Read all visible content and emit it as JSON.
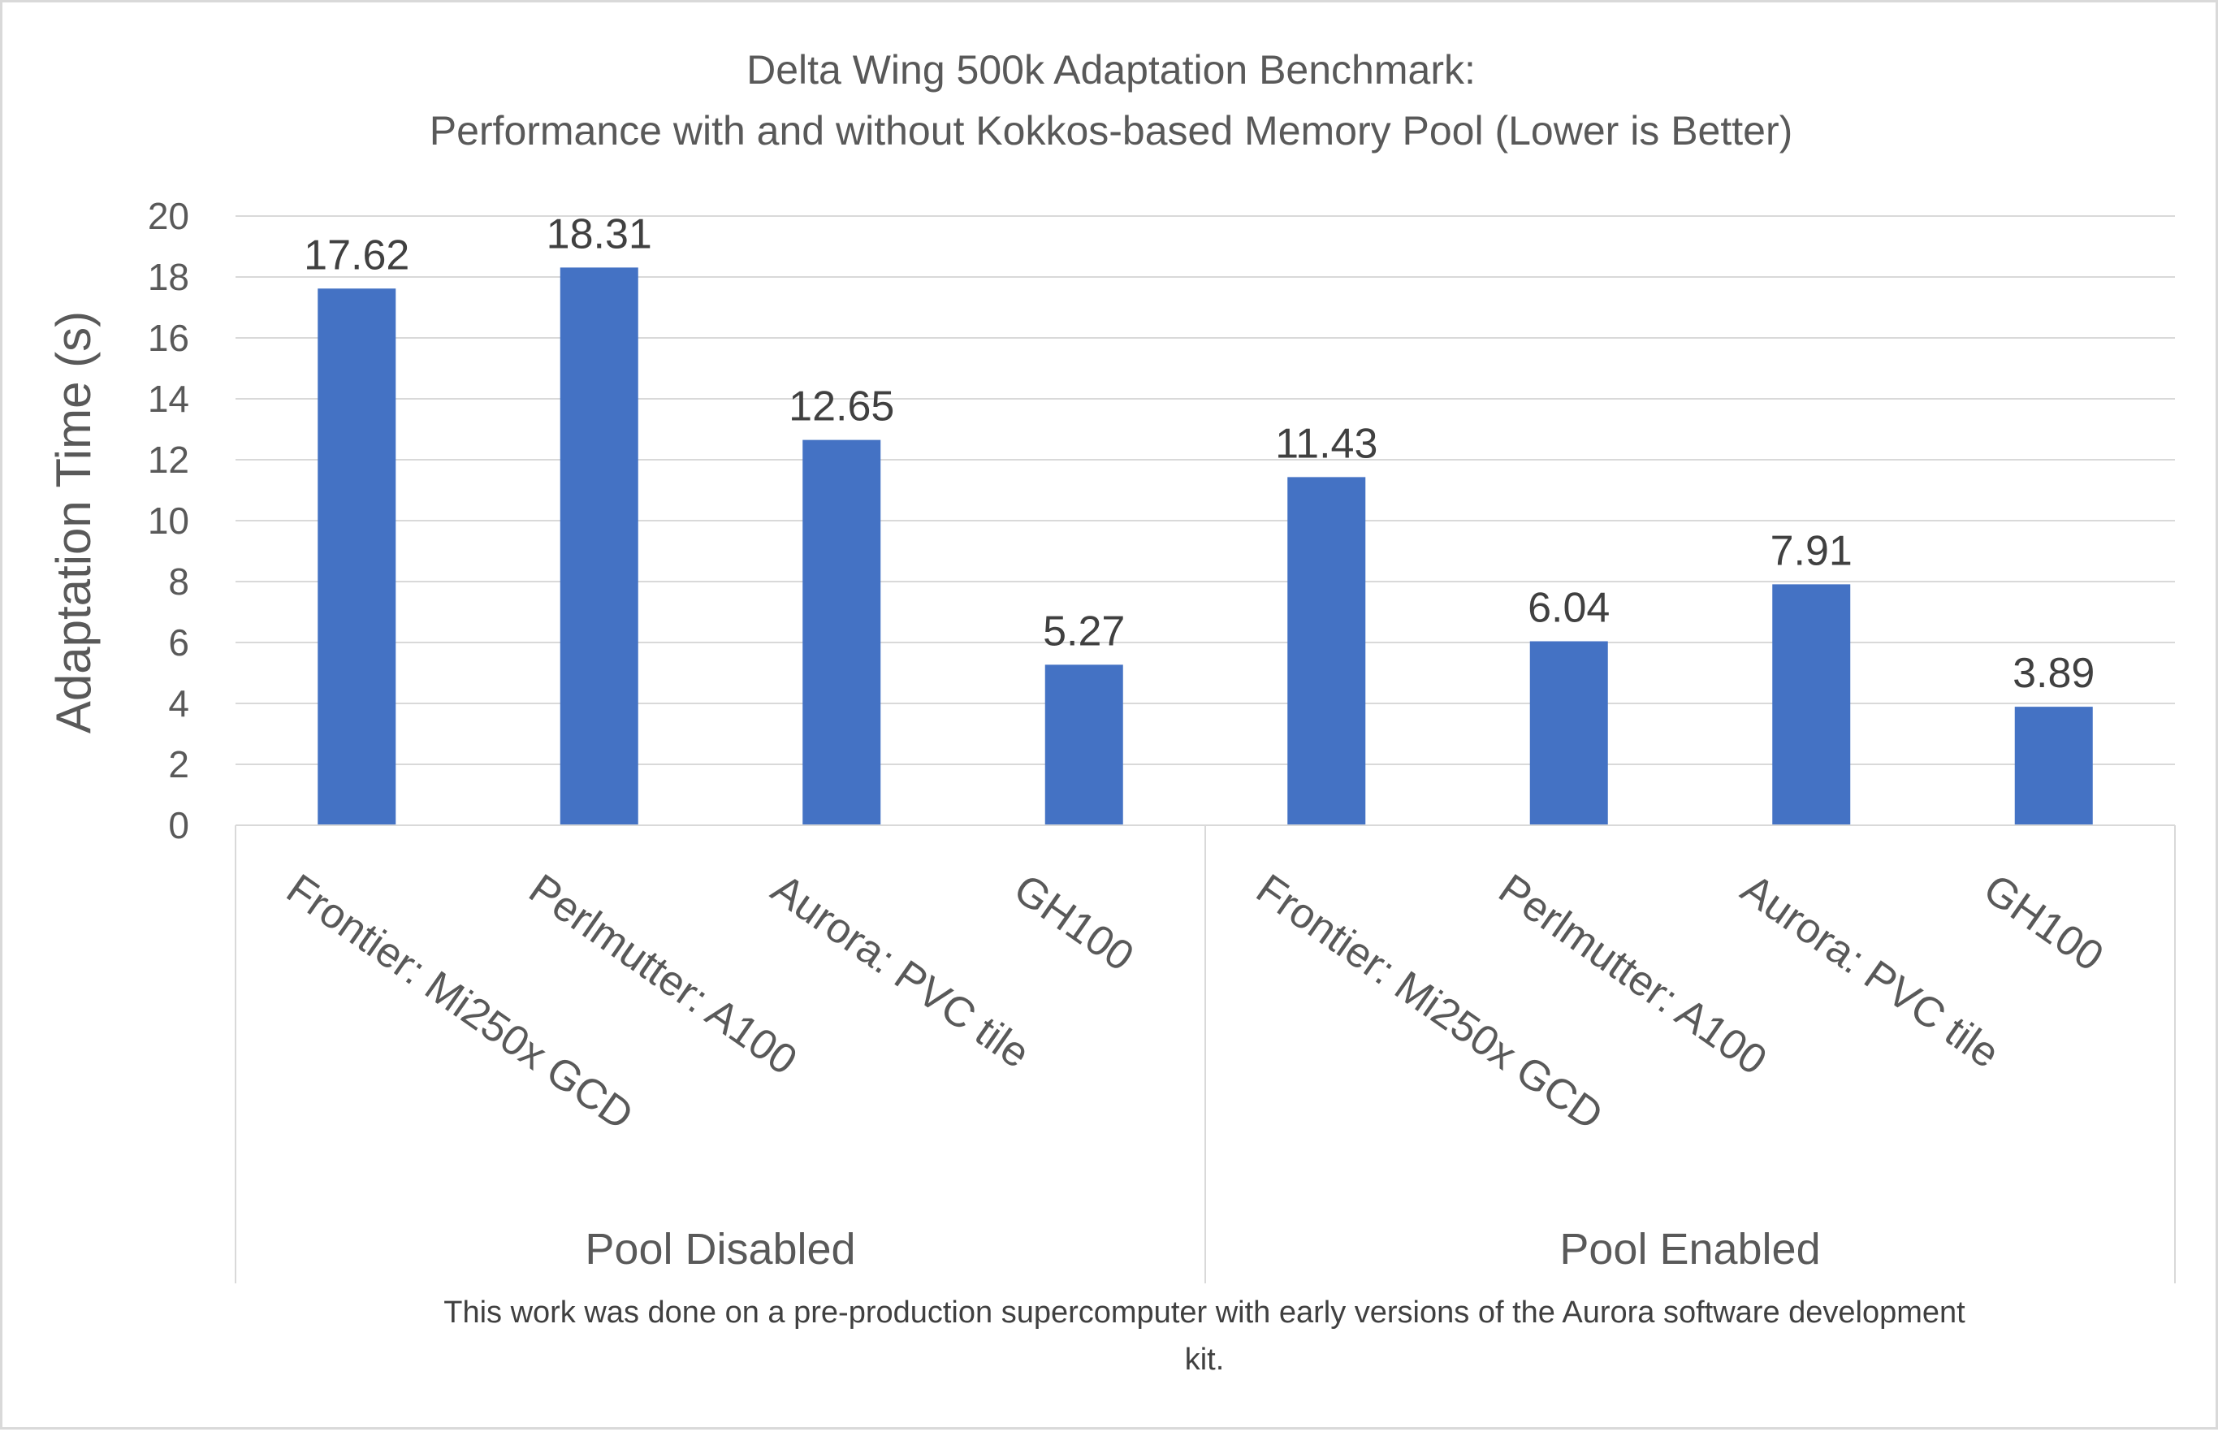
{
  "chart_data": {
    "type": "bar",
    "title": [
      "Delta Wing 500k Adaptation Benchmark:",
      "Performance with and without Kokkos-based Memory Pool (Lower is Better)"
    ],
    "ylabel": "Adaptation Time (s)",
    "xlabel": "",
    "ylim": [
      0,
      20
    ],
    "yticks": [
      0,
      2,
      4,
      6,
      8,
      10,
      12,
      14,
      16,
      18,
      20
    ],
    "grid": true,
    "bar_color": "#4472C4",
    "groups": [
      {
        "label": "Pool Disabled",
        "categories": [
          "Frontier: Mi250x GCD",
          "Perlmutter: A100",
          "Aurora: PVC tile",
          "GH100"
        ],
        "values": [
          17.62,
          18.31,
          12.65,
          5.27
        ],
        "value_labels": [
          "17.62",
          "18.31",
          "12.65",
          "5.27"
        ]
      },
      {
        "label": "Pool Enabled",
        "categories": [
          "Frontier: Mi250x GCD",
          "Perlmutter: A100",
          "Aurora: PVC tile",
          "GH100"
        ],
        "values": [
          11.43,
          6.04,
          7.91,
          3.89
        ],
        "value_labels": [
          "11.43",
          "6.04",
          "7.91",
          "3.89"
        ]
      }
    ],
    "footnote": [
      "This work was done on a pre-production supercomputer with early versions of the Aurora software development",
      "kit."
    ]
  }
}
